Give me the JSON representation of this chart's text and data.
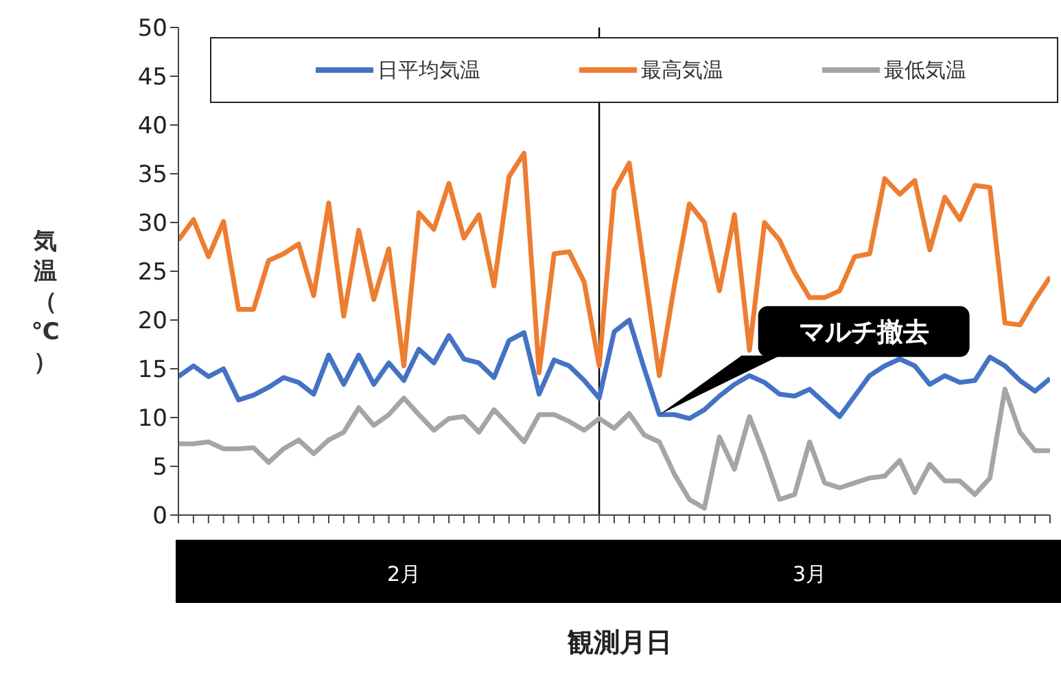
{
  "chart_data": {
    "type": "line",
    "xlabel": "観測月日",
    "ylabel": "気温（℃）",
    "x": [
      "--02-01",
      "--02-02",
      "--02-03",
      "--02-04",
      "--02-05",
      "--02-06",
      "--02-07",
      "--02-08",
      "--02-09",
      "--02-10",
      "--02-11",
      "--02-12",
      "--02-13",
      "--02-14",
      "--02-15",
      "--02-16",
      "--02-17",
      "--02-18",
      "--02-19",
      "--02-20",
      "--02-21",
      "--02-22",
      "--02-23",
      "--02-24",
      "--02-25",
      "--02-26",
      "--02-27",
      "--02-28",
      "--03-01",
      "--03-02",
      "--03-03",
      "--03-04",
      "--03-05",
      "--03-06",
      "--03-07",
      "--03-08",
      "--03-09",
      "--03-10",
      "--03-11",
      "--03-12",
      "--03-13",
      "--03-14",
      "--03-15",
      "--03-16",
      "--03-17",
      "--03-18",
      "--03-19",
      "--03-20",
      "--03-21",
      "--03-22",
      "--03-23",
      "--03-24",
      "--03-25",
      "--03-26",
      "--03-27",
      "--03-28",
      "--03-29",
      "--03-30",
      "--03-31"
    ],
    "series": [
      {
        "name": "日平均気温",
        "color": "#4472c4",
        "values": [
          14.2,
          15.3,
          14.2,
          15.0,
          11.8,
          12.3,
          13.1,
          14.1,
          13.6,
          12.4,
          16.4,
          13.4,
          16.4,
          13.4,
          15.6,
          13.8,
          17.0,
          15.6,
          18.4,
          16.0,
          15.6,
          14.1,
          17.9,
          18.7,
          12.4,
          15.9,
          15.3,
          13.8,
          12.0,
          18.8,
          20.0,
          15.0,
          10.3,
          10.3,
          9.9,
          10.8,
          12.2,
          13.4,
          14.3,
          13.6,
          12.4,
          12.2,
          12.9,
          11.5,
          10.1,
          12.2,
          14.3,
          15.3,
          16.0,
          15.3,
          13.4,
          14.3,
          13.6,
          13.8,
          16.2,
          15.3,
          13.8,
          12.7,
          14.0
        ]
      },
      {
        "name": "最高気温",
        "color": "#ed7d31",
        "values": [
          28.2,
          30.3,
          26.5,
          30.1,
          21.1,
          21.1,
          26.1,
          26.8,
          27.8,
          22.5,
          32.0,
          20.4,
          29.2,
          22.1,
          27.3,
          15.3,
          31.0,
          29.3,
          34.0,
          28.4,
          30.8,
          23.5,
          34.7,
          37.1,
          14.6,
          26.8,
          27.0,
          23.9,
          15.3,
          33.3,
          36.1,
          25.2,
          14.3,
          23.5,
          31.9,
          30.0,
          23.0,
          30.8,
          16.9,
          30.0,
          28.2,
          24.9,
          22.3,
          22.3,
          23.0,
          26.5,
          26.8,
          34.5,
          32.9,
          34.3,
          27.2,
          32.6,
          30.3,
          33.8,
          33.6,
          19.7,
          19.5,
          22.1,
          24.4
        ]
      },
      {
        "name": "最低気温",
        "color": "#a5a5a5",
        "values": [
          7.3,
          7.3,
          7.5,
          6.8,
          6.8,
          6.9,
          5.4,
          6.8,
          7.7,
          6.3,
          7.7,
          8.5,
          11.0,
          9.2,
          10.3,
          12.0,
          10.3,
          8.7,
          9.9,
          10.1,
          8.5,
          10.8,
          9.2,
          7.5,
          10.3,
          10.3,
          9.6,
          8.7,
          9.9,
          8.9,
          10.4,
          8.2,
          7.5,
          4.2,
          1.6,
          0.7,
          8.0,
          4.7,
          10.1,
          6.1,
          1.6,
          2.1,
          7.5,
          3.3,
          2.8,
          3.3,
          3.8,
          4.0,
          5.6,
          2.3,
          5.2,
          3.5,
          3.5,
          2.1,
          3.8,
          12.9,
          8.5,
          6.6,
          6.6
        ]
      }
    ],
    "xlim": [
      "--02-01",
      "--03-31"
    ],
    "xticks": [
      {
        "value": "--02-01",
        "label": null
      },
      {
        "value": "--02-02",
        "label": null
      },
      {
        "value": "--02-03",
        "label": null
      },
      {
        "value": "--02-04",
        "label": null
      },
      {
        "value": "--02-05",
        "label": null
      },
      {
        "value": "--02-06",
        "label": null
      },
      {
        "value": "--02-07",
        "label": null
      },
      {
        "value": "--02-08",
        "label": null
      },
      {
        "value": "--02-09",
        "label": null
      },
      {
        "value": "--02-10",
        "label": null
      },
      {
        "value": "--02-11",
        "label": null
      },
      {
        "value": "--02-12",
        "label": null
      },
      {
        "value": "--02-13",
        "label": null
      },
      {
        "value": "--02-14",
        "label": null
      },
      {
        "value": "--02-15",
        "label": null
      },
      {
        "value": "--02-16",
        "label": "2月"
      },
      {
        "value": "--02-17",
        "label": null
      },
      {
        "value": "--02-18",
        "label": null
      },
      {
        "value": "--02-19",
        "label": null
      },
      {
        "value": "--02-20",
        "label": null
      },
      {
        "value": "--02-21",
        "label": null
      },
      {
        "value": "--02-22",
        "label": null
      },
      {
        "value": "--02-23",
        "label": null
      },
      {
        "value": "--02-24",
        "label": null
      },
      {
        "value": "--02-25",
        "label": null
      },
      {
        "value": "--02-26",
        "label": null
      },
      {
        "value": "--02-27",
        "label": null
      },
      {
        "value": "--02-28",
        "label": null
      },
      {
        "value": "--03-01",
        "label": null
      },
      {
        "value": "--03-02",
        "label": null
      },
      {
        "value": "--03-03",
        "label": null
      },
      {
        "value": "--03-04",
        "label": null
      },
      {
        "value": "--03-05",
        "label": null
      },
      {
        "value": "--03-06",
        "label": null
      },
      {
        "value": "--03-07",
        "label": null
      },
      {
        "value": "--03-08",
        "label": null
      },
      {
        "value": "--03-09",
        "label": null
      },
      {
        "value": "--03-10",
        "label": null
      },
      {
        "value": "--03-11",
        "label": null
      },
      {
        "value": "--03-12",
        "label": null
      },
      {
        "value": "--03-13",
        "label": null
      },
      {
        "value": "--03-14",
        "label": null
      },
      {
        "value": "--03-15",
        "label": "3月"
      },
      {
        "value": "--03-16",
        "label": null
      },
      {
        "value": "--03-17",
        "label": null
      },
      {
        "value": "--03-18",
        "label": null
      },
      {
        "value": "--03-19",
        "label": null
      },
      {
        "value": "--03-20",
        "label": null
      },
      {
        "value": "--03-21",
        "label": null
      },
      {
        "value": "--03-22",
        "label": null
      },
      {
        "value": "--03-23",
        "label": null
      },
      {
        "value": "--03-24",
        "label": null
      },
      {
        "value": "--03-25",
        "label": null
      },
      {
        "value": "--03-26",
        "label": null
      },
      {
        "value": "--03-27",
        "label": null
      },
      {
        "value": "--03-28",
        "label": null
      },
      {
        "value": "--03-29",
        "label": null
      },
      {
        "value": "--03-30",
        "label": null
      },
      {
        "value": "--03-31",
        "label": null
      }
    ],
    "ylim": [
      0,
      50
    ],
    "yticks": [
      0,
      5,
      10,
      15,
      20,
      25,
      30,
      35,
      40,
      45,
      50
    ],
    "ref_lines": [
      {
        "axis": "x",
        "value": "--03-01",
        "color": "#000000"
      }
    ],
    "annotations": [
      {
        "text": "マルチ撤去",
        "x": "--03-05",
        "y": 10.3
      }
    ],
    "grid": false,
    "legend": "top",
    "marker": "none",
    "line_style": "solid"
  }
}
